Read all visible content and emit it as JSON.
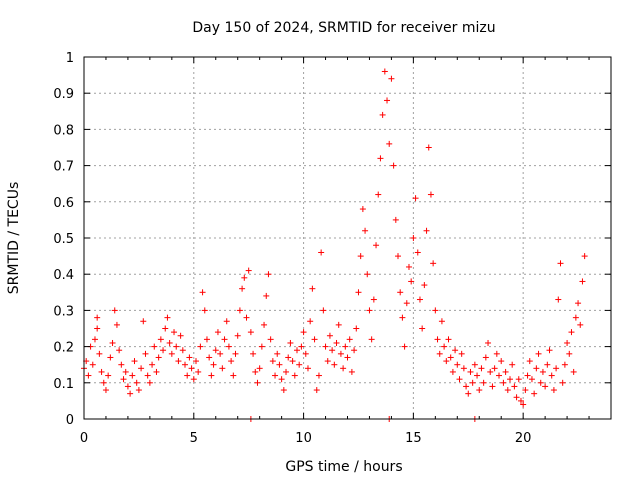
{
  "chart_data": {
    "type": "scatter",
    "title": "Day 150 of 2024, SRMTID for receiver mizu",
    "xlabel": "GPS time / hours",
    "ylabel": "SRMTID / TECUs",
    "xlim": [
      0,
      24
    ],
    "ylim": [
      0,
      1
    ],
    "grid": true,
    "marker": "+",
    "color": "#ff0000",
    "x_ticks": [
      {
        "value": 0,
        "label": "0"
      },
      {
        "value": 5,
        "label": "5"
      },
      {
        "value": 10,
        "label": "10"
      },
      {
        "value": 15,
        "label": "15"
      },
      {
        "value": 20,
        "label": "20"
      }
    ],
    "y_ticks": [
      {
        "value": 0,
        "label": "0"
      },
      {
        "value": 0.1,
        "label": "0.1"
      },
      {
        "value": 0.2,
        "label": "0.2"
      },
      {
        "value": 0.3,
        "label": "0.3"
      },
      {
        "value": 0.4,
        "label": "0.4"
      },
      {
        "value": 0.5,
        "label": "0.5"
      },
      {
        "value": 0.6,
        "label": "0.6"
      },
      {
        "value": 0.7,
        "label": "0.7"
      },
      {
        "value": 0.8,
        "label": "0.8"
      },
      {
        "value": 0.9,
        "label": "0.9"
      },
      {
        "value": 1,
        "label": "1"
      }
    ],
    "series": [
      {
        "name": "SRMTID",
        "points": [
          [
            0.0,
            0.14
          ],
          [
            0.1,
            0.16
          ],
          [
            0.2,
            0.12
          ],
          [
            0.3,
            0.2
          ],
          [
            0.4,
            0.15
          ],
          [
            0.5,
            0.22
          ],
          [
            0.6,
            0.28
          ],
          [
            0.6,
            0.25
          ],
          [
            0.7,
            0.18
          ],
          [
            0.8,
            0.13
          ],
          [
            0.9,
            0.1
          ],
          [
            1.0,
            0.08
          ],
          [
            1.1,
            0.12
          ],
          [
            1.2,
            0.17
          ],
          [
            1.3,
            0.21
          ],
          [
            1.4,
            0.3
          ],
          [
            1.5,
            0.26
          ],
          [
            1.6,
            0.19
          ],
          [
            1.7,
            0.15
          ],
          [
            1.8,
            0.11
          ],
          [
            1.9,
            0.13
          ],
          [
            2.0,
            0.09
          ],
          [
            2.1,
            0.07
          ],
          [
            2.2,
            0.12
          ],
          [
            2.3,
            0.16
          ],
          [
            2.4,
            0.1
          ],
          [
            2.5,
            0.08
          ],
          [
            2.6,
            0.14
          ],
          [
            2.7,
            0.27
          ],
          [
            2.8,
            0.18
          ],
          [
            2.9,
            0.12
          ],
          [
            3.0,
            0.1
          ],
          [
            3.1,
            0.15
          ],
          [
            3.2,
            0.2
          ],
          [
            3.3,
            0.13
          ],
          [
            3.4,
            0.17
          ],
          [
            3.5,
            0.22
          ],
          [
            3.6,
            0.19
          ],
          [
            3.7,
            0.25
          ],
          [
            3.8,
            0.28
          ],
          [
            3.9,
            0.21
          ],
          [
            4.0,
            0.18
          ],
          [
            4.1,
            0.24
          ],
          [
            4.2,
            0.2
          ],
          [
            4.3,
            0.16
          ],
          [
            4.4,
            0.23
          ],
          [
            4.5,
            0.19
          ],
          [
            4.6,
            0.15
          ],
          [
            4.7,
            0.12
          ],
          [
            4.8,
            0.17
          ],
          [
            4.9,
            0.14
          ],
          [
            5.0,
            0.11
          ],
          [
            5.1,
            0.16
          ],
          [
            5.2,
            0.13
          ],
          [
            5.3,
            0.2
          ],
          [
            5.4,
            0.35
          ],
          [
            5.5,
            0.3
          ],
          [
            5.6,
            0.22
          ],
          [
            5.7,
            0.17
          ],
          [
            5.8,
            0.12
          ],
          [
            5.9,
            0.15
          ],
          [
            6.0,
            0.19
          ],
          [
            6.1,
            0.24
          ],
          [
            6.2,
            0.18
          ],
          [
            6.3,
            0.14
          ],
          [
            6.4,
            0.22
          ],
          [
            6.5,
            0.27
          ],
          [
            6.6,
            0.2
          ],
          [
            6.7,
            0.16
          ],
          [
            6.8,
            0.12
          ],
          [
            6.9,
            0.18
          ],
          [
            7.0,
            0.23
          ],
          [
            7.1,
            0.3
          ],
          [
            7.2,
            0.36
          ],
          [
            7.3,
            0.39
          ],
          [
            7.4,
            0.28
          ],
          [
            7.5,
            0.41
          ],
          [
            7.6,
            0.24
          ],
          [
            7.7,
            0.18
          ],
          [
            7.8,
            0.13
          ],
          [
            7.9,
            0.1
          ],
          [
            8.0,
            0.14
          ],
          [
            8.1,
            0.2
          ],
          [
            8.2,
            0.26
          ],
          [
            8.3,
            0.34
          ],
          [
            8.4,
            0.4
          ],
          [
            8.5,
            0.22
          ],
          [
            8.6,
            0.16
          ],
          [
            8.7,
            0.12
          ],
          [
            8.8,
            0.18
          ],
          [
            8.9,
            0.15
          ],
          [
            9.0,
            0.11
          ],
          [
            9.1,
            0.08
          ],
          [
            9.2,
            0.13
          ],
          [
            9.3,
            0.17
          ],
          [
            9.4,
            0.21
          ],
          [
            9.5,
            0.16
          ],
          [
            9.6,
            0.12
          ],
          [
            9.7,
            0.19
          ],
          [
            9.8,
            0.15
          ],
          [
            9.9,
            0.2
          ],
          [
            10.0,
            0.24
          ],
          [
            10.1,
            0.18
          ],
          [
            10.2,
            0.14
          ],
          [
            10.3,
            0.27
          ],
          [
            10.4,
            0.36
          ],
          [
            10.5,
            0.22
          ],
          [
            10.6,
            0.08
          ],
          [
            10.7,
            0.12
          ],
          [
            10.8,
            0.46
          ],
          [
            10.9,
            0.3
          ],
          [
            11.0,
            0.2
          ],
          [
            11.1,
            0.16
          ],
          [
            11.2,
            0.23
          ],
          [
            11.3,
            0.19
          ],
          [
            11.4,
            0.15
          ],
          [
            11.5,
            0.21
          ],
          [
            11.6,
            0.26
          ],
          [
            11.7,
            0.18
          ],
          [
            11.8,
            0.14
          ],
          [
            11.9,
            0.2
          ],
          [
            12.0,
            0.17
          ],
          [
            12.1,
            0.22
          ],
          [
            12.2,
            0.13
          ],
          [
            12.3,
            0.19
          ],
          [
            12.4,
            0.25
          ],
          [
            12.5,
            0.35
          ],
          [
            12.6,
            0.45
          ],
          [
            12.7,
            0.58
          ],
          [
            12.8,
            0.52
          ],
          [
            12.9,
            0.4
          ],
          [
            13.0,
            0.3
          ],
          [
            13.1,
            0.22
          ],
          [
            13.2,
            0.33
          ],
          [
            13.3,
            0.48
          ],
          [
            13.4,
            0.62
          ],
          [
            13.5,
            0.72
          ],
          [
            13.6,
            0.84
          ],
          [
            13.7,
            0.96
          ],
          [
            13.8,
            0.88
          ],
          [
            13.9,
            0.76
          ],
          [
            14.0,
            0.94
          ],
          [
            14.1,
            0.7
          ],
          [
            14.2,
            0.55
          ],
          [
            14.3,
            0.45
          ],
          [
            14.4,
            0.35
          ],
          [
            14.5,
            0.28
          ],
          [
            14.6,
            0.2
          ],
          [
            14.7,
            0.32
          ],
          [
            14.8,
            0.42
          ],
          [
            14.9,
            0.38
          ],
          [
            15.0,
            0.5
          ],
          [
            15.1,
            0.61
          ],
          [
            15.2,
            0.46
          ],
          [
            15.3,
            0.33
          ],
          [
            15.4,
            0.25
          ],
          [
            15.5,
            0.37
          ],
          [
            15.6,
            0.52
          ],
          [
            15.7,
            0.75
          ],
          [
            15.8,
            0.62
          ],
          [
            15.9,
            0.43
          ],
          [
            16.0,
            0.3
          ],
          [
            16.1,
            0.22
          ],
          [
            16.2,
            0.18
          ],
          [
            16.3,
            0.27
          ],
          [
            16.4,
            0.2
          ],
          [
            16.5,
            0.16
          ],
          [
            16.6,
            0.22
          ],
          [
            16.7,
            0.17
          ],
          [
            16.8,
            0.13
          ],
          [
            16.9,
            0.19
          ],
          [
            17.0,
            0.15
          ],
          [
            17.1,
            0.11
          ],
          [
            17.2,
            0.18
          ],
          [
            17.3,
            0.14
          ],
          [
            17.4,
            0.09
          ],
          [
            17.5,
            0.07
          ],
          [
            17.6,
            0.13
          ],
          [
            17.7,
            0.1
          ],
          [
            17.8,
            0.15
          ],
          [
            17.9,
            0.12
          ],
          [
            18.0,
            0.08
          ],
          [
            18.1,
            0.14
          ],
          [
            18.2,
            0.1
          ],
          [
            18.3,
            0.17
          ],
          [
            18.4,
            0.21
          ],
          [
            18.5,
            0.13
          ],
          [
            18.6,
            0.09
          ],
          [
            18.7,
            0.14
          ],
          [
            18.8,
            0.18
          ],
          [
            18.9,
            0.12
          ],
          [
            19.0,
            0.16
          ],
          [
            19.1,
            0.1
          ],
          [
            19.2,
            0.13
          ],
          [
            19.3,
            0.08
          ],
          [
            19.4,
            0.11
          ],
          [
            19.5,
            0.15
          ],
          [
            19.6,
            0.09
          ],
          [
            19.7,
            0.06
          ],
          [
            19.8,
            0.11
          ],
          [
            19.9,
            0.05
          ],
          [
            20.0,
            0.04
          ],
          [
            20.1,
            0.08
          ],
          [
            20.2,
            0.12
          ],
          [
            20.3,
            0.16
          ],
          [
            20.4,
            0.11
          ],
          [
            20.5,
            0.07
          ],
          [
            20.6,
            0.14
          ],
          [
            20.7,
            0.18
          ],
          [
            20.8,
            0.1
          ],
          [
            20.9,
            0.13
          ],
          [
            21.0,
            0.09
          ],
          [
            21.1,
            0.15
          ],
          [
            21.2,
            0.19
          ],
          [
            21.3,
            0.12
          ],
          [
            21.4,
            0.08
          ],
          [
            21.5,
            0.14
          ],
          [
            21.6,
            0.33
          ],
          [
            21.7,
            0.43
          ],
          [
            21.8,
            0.1
          ],
          [
            21.9,
            0.15
          ],
          [
            22.0,
            0.21
          ],
          [
            22.1,
            0.18
          ],
          [
            22.2,
            0.24
          ],
          [
            22.3,
            0.13
          ],
          [
            22.4,
            0.28
          ],
          [
            22.5,
            0.32
          ],
          [
            22.6,
            0.26
          ],
          [
            22.7,
            0.38
          ],
          [
            22.8,
            0.45
          ],
          [
            7.6,
            0.0
          ],
          [
            13.9,
            0.0
          ],
          [
            17.8,
            0.0
          ]
        ]
      }
    ]
  }
}
